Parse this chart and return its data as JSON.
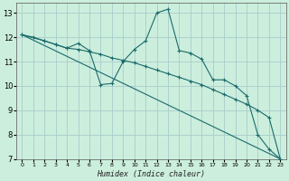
{
  "xlabel": "Humidex (Indice chaleur)",
  "bg_color": "#cceedd",
  "grid_color": "#aacccc",
  "line_color": "#1a6b6b",
  "xlim": [
    -0.5,
    23.5
  ],
  "ylim": [
    7,
    13.4
  ],
  "xticks": [
    0,
    1,
    2,
    3,
    4,
    5,
    6,
    7,
    8,
    9,
    10,
    11,
    12,
    13,
    14,
    15,
    16,
    17,
    18,
    19,
    20,
    21,
    22,
    23
  ],
  "yticks": [
    7,
    8,
    9,
    10,
    11,
    12,
    13
  ],
  "series1_x": [
    0,
    1,
    2,
    3,
    4,
    5,
    6,
    7,
    8,
    9,
    10,
    11,
    12,
    13,
    14,
    15,
    16,
    17,
    18,
    19,
    20,
    21,
    22,
    23
  ],
  "series1_y": [
    12.1,
    12.0,
    11.85,
    11.7,
    11.55,
    11.75,
    11.45,
    10.05,
    10.1,
    11.0,
    11.5,
    11.85,
    13.0,
    13.15,
    11.45,
    11.35,
    11.1,
    10.25,
    10.25,
    10.0,
    9.6,
    8.0,
    7.4,
    7.0
  ],
  "series2_x": [
    0,
    2,
    3,
    4,
    5,
    6,
    7,
    8,
    9,
    10,
    11,
    12,
    13,
    14,
    15,
    16,
    17,
    18,
    19,
    20,
    21,
    22,
    23
  ],
  "series2_y": [
    12.1,
    11.85,
    11.7,
    11.55,
    11.5,
    11.4,
    11.3,
    11.15,
    11.05,
    10.95,
    10.8,
    10.65,
    10.5,
    10.35,
    10.2,
    10.05,
    9.85,
    9.65,
    9.45,
    9.25,
    9.0,
    8.7,
    7.0
  ],
  "series3_x": [
    0,
    23
  ],
  "series3_y": [
    12.1,
    7.0
  ]
}
